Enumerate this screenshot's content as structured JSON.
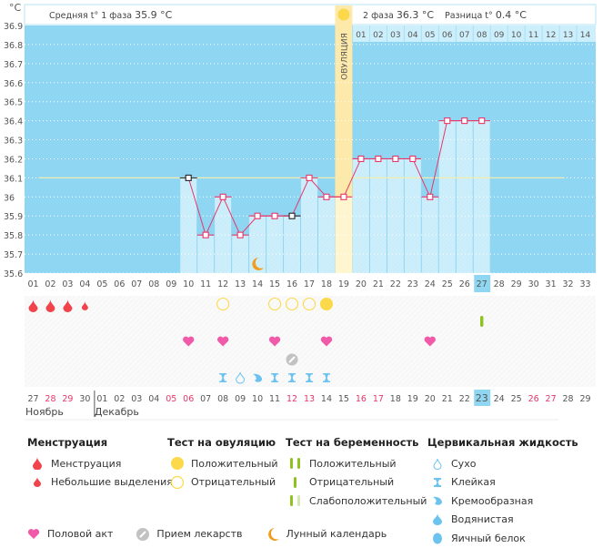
{
  "header": {
    "unit": "°C",
    "phase1_label": "Средняя t° 1 фаза",
    "phase1_value": "35.9 °C",
    "phase2_label": "2 фаза",
    "phase2_value": "36.3 °C",
    "diff_label": "Разница t°",
    "diff_value": "0.4 °C",
    "ovulation_label": "ОВУЛЯЦИЯ"
  },
  "colors": {
    "chart_bg": "#8fd6f2",
    "filled_bar": "#cdeefb",
    "ovulation_band": "#fde9a9",
    "line": "#e8366a",
    "coverline": "#f3ecb0",
    "weekend_text": "#e8366a",
    "menstruation": "#f0434b",
    "ovulation_test": "#fcd94a",
    "heart": "#f05aa8",
    "pill": "#c2c2c2",
    "moon": "#f39c1e",
    "pregnancy_test": "#8dc21f",
    "pregnancy_test_faint": "#d5e8b0",
    "cervical": "#6cc3ef",
    "today_highlight": "#8fd6f2"
  },
  "chart_data": {
    "type": "line",
    "title": "",
    "ylabel": "°C",
    "ylim": [
      35.6,
      36.9
    ],
    "y_ticks": [
      "36.9",
      "36.8",
      "36.7",
      "36.6",
      "36.5",
      "36.4",
      "36.3",
      "36.2",
      "36.1",
      "36",
      "35.9",
      "35.8",
      "35.7",
      "35.6"
    ],
    "y_tick_values": [
      36.9,
      36.8,
      36.7,
      36.6,
      36.5,
      36.4,
      36.3,
      36.2,
      36.1,
      36.0,
      35.9,
      35.8,
      35.7,
      35.6
    ],
    "cycle_days": [
      "01",
      "02",
      "03",
      "04",
      "05",
      "06",
      "07",
      "08",
      "09",
      "10",
      "11",
      "12",
      "13",
      "14",
      "15",
      "16",
      "17",
      "18",
      "19",
      "20",
      "21",
      "22",
      "23",
      "24",
      "25",
      "26",
      "27",
      "28",
      "29",
      "30",
      "31",
      "32",
      "33"
    ],
    "phase2_days": [
      "01",
      "02",
      "03",
      "04",
      "05",
      "06",
      "07",
      "08",
      "09",
      "10",
      "11",
      "12",
      "13",
      "14"
    ],
    "temperature": {
      "days": [
        10,
        11,
        12,
        13,
        14,
        15,
        16,
        17,
        18,
        19,
        20,
        21,
        22,
        23,
        24,
        25,
        26,
        27
      ],
      "values": [
        36.1,
        35.8,
        36.0,
        35.8,
        35.9,
        35.9,
        35.9,
        36.1,
        36.0,
        36.0,
        36.2,
        36.2,
        36.2,
        36.2,
        36.0,
        36.4,
        36.4,
        36.4
      ],
      "excluded_days": [
        10,
        16
      ]
    },
    "coverline": 36.1,
    "coverline_range": [
      1,
      32
    ],
    "ovulation_day": 19,
    "today_cycle_day": 27,
    "calendar_dates": [
      "27",
      "28",
      "29",
      "30",
      "01",
      "02",
      "03",
      "04",
      "05",
      "06",
      "07",
      "08",
      "09",
      "10",
      "11",
      "12",
      "13",
      "14",
      "15",
      "16",
      "17",
      "18",
      "19",
      "20",
      "21",
      "22",
      "23",
      "24",
      "25",
      "26",
      "27",
      "28",
      "29"
    ],
    "calendar_weekend": [
      false,
      true,
      true,
      false,
      false,
      false,
      false,
      false,
      true,
      true,
      false,
      false,
      false,
      false,
      false,
      true,
      true,
      false,
      false,
      true,
      true,
      false,
      false,
      false,
      false,
      false,
      false,
      false,
      false,
      true,
      true,
      false,
      false
    ],
    "today_date_index": 27,
    "months": [
      {
        "label": "Ноябрь",
        "start_index": 1
      },
      {
        "label": "Декабрь",
        "start_index": 5
      }
    ],
    "menstruation": [
      {
        "day": 1,
        "type": "heavy"
      },
      {
        "day": 2,
        "type": "heavy"
      },
      {
        "day": 3,
        "type": "heavy"
      },
      {
        "day": 4,
        "type": "light"
      }
    ],
    "ovulation_tests": [
      {
        "day": 12,
        "result": "negative"
      },
      {
        "day": 15,
        "result": "negative"
      },
      {
        "day": 16,
        "result": "negative"
      },
      {
        "day": 17,
        "result": "negative"
      },
      {
        "day": 18,
        "result": "positive"
      }
    ],
    "pregnancy_tests": [
      {
        "day": 27,
        "result": "negative"
      }
    ],
    "intercourse_days": [
      10,
      12,
      15,
      18,
      24
    ],
    "medication_days": [
      16
    ],
    "lunar_days": [
      14
    ],
    "cervical_fluid": [
      {
        "day": 12,
        "type": "sticky"
      },
      {
        "day": 13,
        "type": "dry"
      },
      {
        "day": 14,
        "type": "creamy"
      },
      {
        "day": 15,
        "type": "sticky"
      },
      {
        "day": 16,
        "type": "sticky"
      },
      {
        "day": 17,
        "type": "sticky"
      },
      {
        "day": 18,
        "type": "sticky"
      }
    ]
  },
  "legend": {
    "menstruation": {
      "title": "Менструация",
      "items": [
        "Менструация",
        "Небольшие выделения"
      ]
    },
    "ovulation_test": {
      "title": "Тест на овуляцию",
      "items": [
        "Положительный",
        "Отрицательный"
      ]
    },
    "pregnancy_test": {
      "title": "Тест на беременность",
      "items": [
        "Положительный",
        "Отрицательный",
        "Слабоположительный"
      ]
    },
    "cervical": {
      "title": "Цервикальная жидкость",
      "items": [
        "Сухо",
        "Клейкая",
        "Кремообразная",
        "Водянистая",
        "Яичный белок"
      ]
    },
    "other": [
      "Половой акт",
      "Прием лекарств",
      "Лунный календарь"
    ]
  }
}
